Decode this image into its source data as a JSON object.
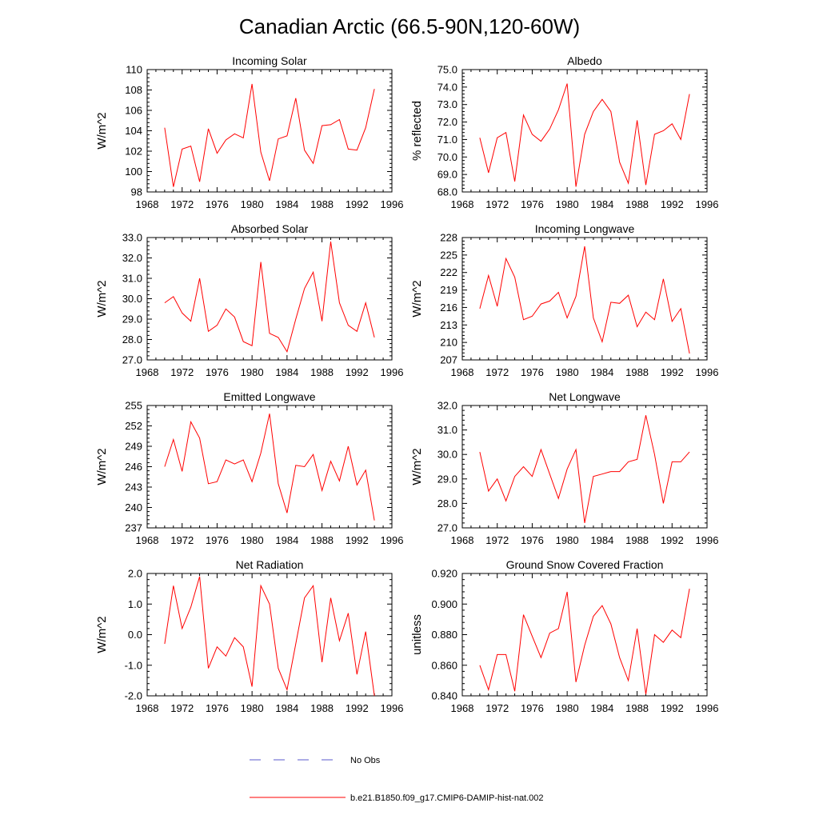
{
  "figure": {
    "title": "Canadian Arctic (66.5-90N,120-60W)",
    "legend": [
      {
        "label": "No Obs",
        "color": "#5a5acd",
        "dash": "dashed"
      },
      {
        "label": "b.e21.B1850.f09_g17.CMIP6-DAMIP-hist-nat.002",
        "color": "#ff0000",
        "dash": "solid"
      }
    ]
  },
  "chart_data": [
    {
      "type": "line",
      "title": "Incoming Solar",
      "ylabel": "W/m^2",
      "xlim": [
        1968,
        1996
      ],
      "ylim": [
        98,
        110
      ],
      "xticks": [
        1968,
        1972,
        1976,
        1980,
        1984,
        1988,
        1992,
        1996
      ],
      "yticks": [
        98,
        100,
        102,
        104,
        106,
        108,
        110
      ],
      "ytick_labels": [
        "98",
        "100",
        "102",
        "104",
        "106",
        "108",
        "110"
      ],
      "x": [
        1970,
        1971,
        1972,
        1973,
        1974,
        1975,
        1976,
        1977,
        1978,
        1979,
        1980,
        1981,
        1982,
        1983,
        1984,
        1985,
        1986,
        1987,
        1988,
        1989,
        1990,
        1991,
        1992,
        1993,
        1994
      ],
      "series": [
        {
          "color": "#ff0000",
          "values": [
            104.3,
            98.5,
            102.2,
            102.5,
            99.0,
            104.2,
            101.8,
            103.1,
            103.7,
            103.3,
            108.6,
            101.9,
            99.1,
            103.2,
            103.5,
            107.2,
            102.1,
            100.8,
            104.5,
            104.6,
            105.1,
            102.2,
            102.1,
            104.3,
            108.1
          ]
        }
      ]
    },
    {
      "type": "line",
      "title": "Albedo",
      "ylabel": "% reflected",
      "xlim": [
        1968,
        1996
      ],
      "ylim": [
        68,
        75
      ],
      "xticks": [
        1968,
        1972,
        1976,
        1980,
        1984,
        1988,
        1992,
        1996
      ],
      "yticks": [
        68,
        69,
        70,
        71,
        72,
        73,
        74,
        75
      ],
      "ytick_labels": [
        "68.0",
        "69.0",
        "70.0",
        "71.0",
        "72.0",
        "73.0",
        "74.0",
        "75.0"
      ],
      "x": [
        1970,
        1971,
        1972,
        1973,
        1974,
        1975,
        1976,
        1977,
        1978,
        1979,
        1980,
        1981,
        1982,
        1983,
        1984,
        1985,
        1986,
        1987,
        1988,
        1989,
        1990,
        1991,
        1992,
        1993,
        1994
      ],
      "series": [
        {
          "color": "#ff0000",
          "values": [
            71.1,
            69.1,
            71.1,
            71.4,
            68.6,
            72.4,
            71.3,
            70.9,
            71.6,
            72.7,
            74.2,
            68.3,
            71.3,
            72.6,
            73.3,
            72.6,
            69.7,
            68.5,
            72.1,
            68.4,
            71.3,
            71.5,
            71.9,
            71.0,
            73.6
          ]
        }
      ]
    },
    {
      "type": "line",
      "title": "Absorbed Solar",
      "ylabel": "W/m^2",
      "xlim": [
        1968,
        1996
      ],
      "ylim": [
        27,
        33
      ],
      "xticks": [
        1968,
        1972,
        1976,
        1980,
        1984,
        1988,
        1992,
        1996
      ],
      "yticks": [
        27,
        28,
        29,
        30,
        31,
        32,
        33
      ],
      "ytick_labels": [
        "27.0",
        "28.0",
        "29.0",
        "30.0",
        "31.0",
        "32.0",
        "33.0"
      ],
      "x": [
        1970,
        1971,
        1972,
        1973,
        1974,
        1975,
        1976,
        1977,
        1978,
        1979,
        1980,
        1981,
        1982,
        1983,
        1984,
        1985,
        1986,
        1987,
        1988,
        1989,
        1990,
        1991,
        1992,
        1993,
        1994
      ],
      "series": [
        {
          "color": "#ff0000",
          "values": [
            29.8,
            30.1,
            29.3,
            28.9,
            31.0,
            28.4,
            28.7,
            29.5,
            29.1,
            27.9,
            27.7,
            31.8,
            28.3,
            28.1,
            27.4,
            29.0,
            30.5,
            31.3,
            28.9,
            32.8,
            29.8,
            28.7,
            28.4,
            29.8,
            28.1
          ]
        }
      ]
    },
    {
      "type": "line",
      "title": "Incoming Longwave",
      "ylabel": "W/m^2",
      "xlim": [
        1968,
        1996
      ],
      "ylim": [
        207,
        228
      ],
      "xticks": [
        1968,
        1972,
        1976,
        1980,
        1984,
        1988,
        1992,
        1996
      ],
      "yticks": [
        207,
        210,
        213,
        216,
        219,
        222,
        225,
        228
      ],
      "ytick_labels": [
        "207",
        "210",
        "213",
        "216",
        "219",
        "222",
        "225",
        "228"
      ],
      "x": [
        1970,
        1971,
        1972,
        1973,
        1974,
        1975,
        1976,
        1977,
        1978,
        1979,
        1980,
        1981,
        1982,
        1983,
        1984,
        1985,
        1986,
        1987,
        1988,
        1989,
        1990,
        1991,
        1992,
        1993,
        1994
      ],
      "series": [
        {
          "color": "#ff0000",
          "values": [
            215.8,
            221.5,
            216.2,
            224.4,
            221.2,
            213.9,
            214.5,
            216.6,
            217.1,
            218.6,
            214.2,
            217.9,
            226.5,
            214.2,
            210.1,
            216.9,
            216.7,
            218.1,
            212.7,
            215.2,
            213.9,
            220.9,
            213.6,
            215.8,
            208.1
          ]
        }
      ]
    },
    {
      "type": "line",
      "title": "Emitted Longwave",
      "ylabel": "W/m^2",
      "xlim": [
        1968,
        1996
      ],
      "ylim": [
        237,
        255
      ],
      "xticks": [
        1968,
        1972,
        1976,
        1980,
        1984,
        1988,
        1992,
        1996
      ],
      "yticks": [
        237,
        240,
        243,
        246,
        249,
        252,
        255
      ],
      "ytick_labels": [
        "237",
        "240",
        "243",
        "246",
        "249",
        "252",
        "255"
      ],
      "x": [
        1970,
        1971,
        1972,
        1973,
        1974,
        1975,
        1976,
        1977,
        1978,
        1979,
        1980,
        1981,
        1982,
        1983,
        1984,
        1985,
        1986,
        1987,
        1988,
        1989,
        1990,
        1991,
        1992,
        1993,
        1994
      ],
      "series": [
        {
          "color": "#ff0000",
          "values": [
            246.0,
            250.0,
            245.3,
            252.6,
            250.2,
            243.5,
            243.8,
            247.0,
            246.4,
            247.0,
            243.8,
            248.0,
            253.8,
            243.5,
            239.2,
            246.2,
            246.0,
            247.8,
            242.5,
            246.8,
            243.9,
            249.0,
            243.3,
            245.5,
            238.1
          ]
        }
      ]
    },
    {
      "type": "line",
      "title": "Net Longwave",
      "ylabel": "W/m^2",
      "xlim": [
        1968,
        1996
      ],
      "ylim": [
        27,
        32
      ],
      "xticks": [
        1968,
        1972,
        1976,
        1980,
        1984,
        1988,
        1992,
        1996
      ],
      "yticks": [
        27,
        28,
        29,
        30,
        31,
        32
      ],
      "ytick_labels": [
        "27.0",
        "28.0",
        "29.0",
        "30.0",
        "31.0",
        "32.0"
      ],
      "x": [
        1970,
        1971,
        1972,
        1973,
        1974,
        1975,
        1976,
        1977,
        1978,
        1979,
        1980,
        1981,
        1982,
        1983,
        1984,
        1985,
        1986,
        1987,
        1988,
        1989,
        1990,
        1991,
        1992,
        1993,
        1994
      ],
      "series": [
        {
          "color": "#ff0000",
          "values": [
            30.1,
            28.5,
            29.0,
            28.1,
            29.1,
            29.5,
            29.1,
            30.2,
            29.2,
            28.2,
            29.4,
            30.2,
            27.2,
            29.1,
            29.2,
            29.3,
            29.3,
            29.7,
            29.8,
            31.6,
            30.0,
            28.0,
            29.7,
            29.7,
            30.1
          ]
        }
      ]
    },
    {
      "type": "line",
      "title": "Net Radiation",
      "ylabel": "W/m^2",
      "xlim": [
        1968,
        1996
      ],
      "ylim": [
        -2,
        2
      ],
      "xticks": [
        1968,
        1972,
        1976,
        1980,
        1984,
        1988,
        1992,
        1996
      ],
      "yticks": [
        -2,
        -1,
        0,
        1,
        2
      ],
      "ytick_labels": [
        "-2.0",
        "-1.0",
        "0.0",
        "1.0",
        "2.0"
      ],
      "x": [
        1970,
        1971,
        1972,
        1973,
        1974,
        1975,
        1976,
        1977,
        1978,
        1979,
        1980,
        1981,
        1982,
        1983,
        1984,
        1985,
        1986,
        1987,
        1988,
        1989,
        1990,
        1991,
        1992,
        1993,
        1994
      ],
      "series": [
        {
          "color": "#ff0000",
          "values": [
            -0.3,
            1.6,
            0.2,
            0.9,
            1.9,
            -1.1,
            -0.4,
            -0.7,
            -0.1,
            -0.4,
            -1.7,
            1.6,
            1.0,
            -1.1,
            -1.8,
            -0.3,
            1.2,
            1.6,
            -0.9,
            1.2,
            -0.2,
            0.7,
            -1.3,
            0.1,
            -2.0
          ]
        }
      ]
    },
    {
      "type": "line",
      "title": "Ground Snow Covered Fraction",
      "ylabel": "unitless",
      "xlim": [
        1968,
        1996
      ],
      "ylim": [
        0.84,
        0.92
      ],
      "xticks": [
        1968,
        1972,
        1976,
        1980,
        1984,
        1988,
        1992,
        1996
      ],
      "yticks": [
        0.84,
        0.86,
        0.88,
        0.9,
        0.92
      ],
      "ytick_labels": [
        "0.840",
        "0.860",
        "0.880",
        "0.900",
        "0.920"
      ],
      "x": [
        1970,
        1971,
        1972,
        1973,
        1974,
        1975,
        1976,
        1977,
        1978,
        1979,
        1980,
        1981,
        1982,
        1983,
        1984,
        1985,
        1986,
        1987,
        1988,
        1989,
        1990,
        1991,
        1992,
        1993,
        1994
      ],
      "series": [
        {
          "color": "#ff0000",
          "values": [
            0.86,
            0.844,
            0.867,
            0.867,
            0.843,
            0.893,
            0.879,
            0.865,
            0.881,
            0.884,
            0.908,
            0.849,
            0.873,
            0.892,
            0.899,
            0.887,
            0.865,
            0.85,
            0.884,
            0.841,
            0.88,
            0.875,
            0.883,
            0.878,
            0.91
          ]
        }
      ]
    }
  ]
}
